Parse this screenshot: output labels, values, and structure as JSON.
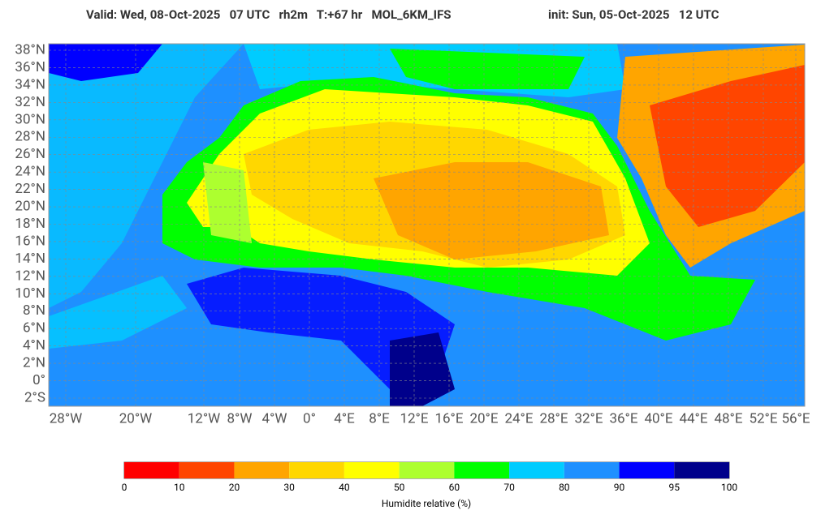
{
  "header": {
    "valid": "Valid: Wed, 08-Oct-2025   07 UTC   rh2m   T:+67 hr   MOL_6KM_IFS",
    "init": "init: Sun, 05-Oct-2025   12 UTC"
  },
  "map": {
    "lat_labels": [
      "38°N",
      "36°N",
      "34°N",
      "32°N",
      "30°N",
      "28°N",
      "26°N",
      "24°N",
      "22°N",
      "20°N",
      "18°N",
      "16°N",
      "14°N",
      "12°N",
      "10°N",
      "8°N",
      "6°N",
      "4°N",
      "2°N",
      "0°",
      "2°S"
    ],
    "lon_labels": [
      "28°W",
      "20°W",
      "12°W",
      "8°W",
      "4°W",
      "0°",
      "4°E",
      "8°E",
      "12°E",
      "16°E",
      "20°E",
      "24°E",
      "28°E",
      "32°E",
      "36°E",
      "40°E",
      "44°E",
      "48°E",
      "52°E",
      "56°E"
    ]
  },
  "colorbar": {
    "ticks": [
      0,
      10,
      20,
      30,
      40,
      50,
      60,
      70,
      80,
      90,
      95,
      100
    ],
    "colors": [
      "#ff0000",
      "#ff4500",
      "#ffa500",
      "#ffd700",
      "#ffff00",
      "#adff2f",
      "#00ff00",
      "#00ccff",
      "#1e90ff",
      "#0000ff",
      "#00008b"
    ],
    "label": "Humidite relative (%)"
  }
}
